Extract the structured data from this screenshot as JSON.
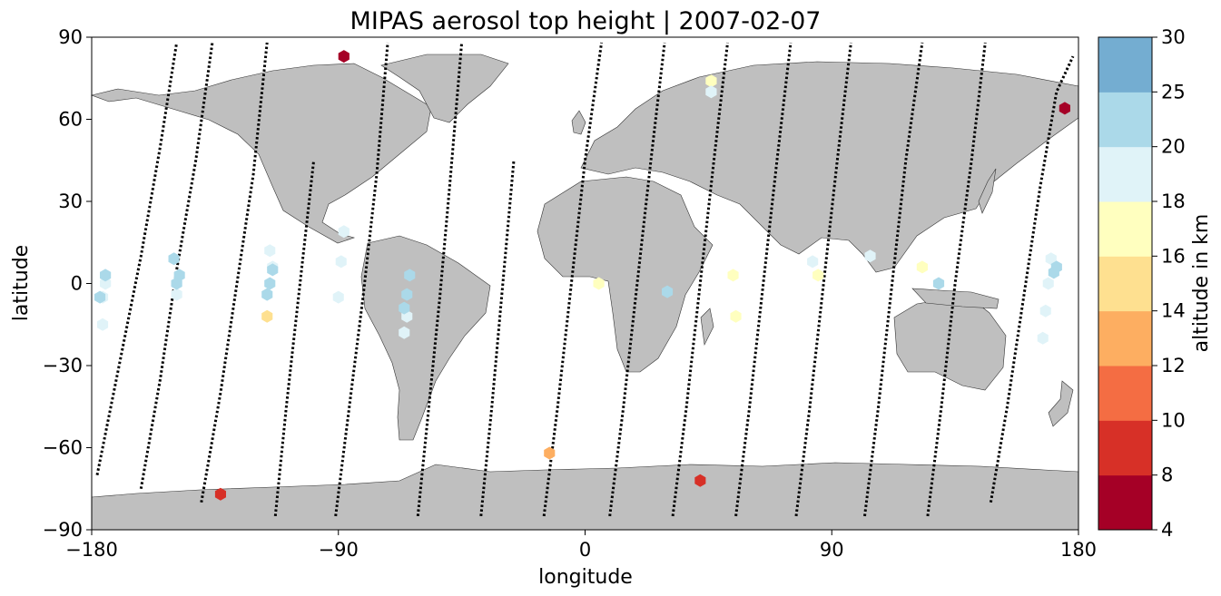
{
  "chart_data": {
    "type": "scatter",
    "title": "MIPAS aerosol top height | 2007-02-07",
    "xlabel": "longitude",
    "ylabel": "latitude",
    "xlim": [
      -180,
      180
    ],
    "ylim": [
      -90,
      90
    ],
    "xticks": [
      -180,
      -90,
      0,
      90,
      180
    ],
    "yticks": [
      -90,
      -60,
      -30,
      0,
      30,
      60,
      90
    ],
    "xtick_labels": [
      "−180",
      "−90",
      "0",
      "90",
      "180"
    ],
    "ytick_labels": [
      "−90",
      "−60",
      "−30",
      "0",
      "30",
      "60",
      "90"
    ],
    "grid": false,
    "colorbar": {
      "label": "altitude in km",
      "bounds": [
        4,
        8,
        10,
        12,
        14,
        16,
        18,
        20,
        25,
        30
      ],
      "tick_labels": [
        "4",
        "8",
        "10",
        "12",
        "14",
        "16",
        "18",
        "20",
        "25",
        "30"
      ],
      "colors": [
        "#a50026",
        "#d73027",
        "#f46d43",
        "#fdae61",
        "#fee090",
        "#ffffbf",
        "#e0f3f8",
        "#abd9e9",
        "#74add1",
        "#4575b4",
        "#313695"
      ]
    },
    "orbit_tracks": [
      {
        "x": [
          -178,
          -170,
          -162,
          -155,
          -149
        ],
        "y": [
          -70,
          -30,
          10,
          50,
          88
        ]
      },
      {
        "x": [
          -162,
          -155,
          -149,
          -142,
          -136
        ],
        "y": [
          -75,
          -35,
          5,
          45,
          88
        ]
      },
      {
        "x": [
          -140,
          -133,
          -127,
          -121,
          -116
        ],
        "y": [
          -80,
          -40,
          0,
          40,
          88
        ]
      },
      {
        "x": [
          -113,
          -109,
          -104,
          -99
        ],
        "y": [
          -85,
          -45,
          0,
          45
        ]
      },
      {
        "x": [
          -91,
          -86,
          -81,
          -76,
          -72
        ],
        "y": [
          -85,
          -45,
          -5,
          40,
          88
        ]
      },
      {
        "x": [
          -61,
          -57,
          -53,
          -49,
          -45
        ],
        "y": [
          -85,
          -45,
          -5,
          40,
          88
        ]
      },
      {
        "x": [
          -38,
          -34,
          -30,
          -26
        ],
        "y": [
          -85,
          -45,
          0,
          45
        ]
      },
      {
        "x": [
          -15,
          -10,
          -5,
          0,
          6
        ],
        "y": [
          -85,
          -45,
          0,
          45,
          88
        ]
      },
      {
        "x": [
          9,
          14,
          19,
          24,
          29
        ],
        "y": [
          -85,
          -45,
          0,
          45,
          88
        ]
      },
      {
        "x": [
          32,
          37,
          42,
          47,
          52
        ],
        "y": [
          -85,
          -45,
          0,
          45,
          88
        ]
      },
      {
        "x": [
          55,
          60,
          65,
          70,
          75
        ],
        "y": [
          -85,
          -45,
          0,
          45,
          88
        ]
      },
      {
        "x": [
          77,
          82,
          87,
          92,
          97
        ],
        "y": [
          -85,
          -45,
          0,
          45,
          88
        ]
      },
      {
        "x": [
          102,
          107,
          112,
          117,
          123
        ],
        "y": [
          -85,
          -45,
          0,
          45,
          88
        ]
      },
      {
        "x": [
          125,
          130,
          135,
          141,
          146
        ],
        "y": [
          -85,
          -45,
          0,
          45,
          88
        ]
      },
      {
        "x": [
          148,
          154,
          160,
          166,
          172,
          178
        ],
        "y": [
          -80,
          -45,
          -5,
          35,
          70,
          83
        ]
      }
    ],
    "points": [
      {
        "x": -88,
        "y": 83,
        "value": 6
      },
      {
        "x": 175,
        "y": 64,
        "value": 6
      },
      {
        "x": -133,
        "y": -77,
        "value": 9
      },
      {
        "x": 42,
        "y": -72,
        "value": 9
      },
      {
        "x": -13,
        "y": -62,
        "value": 13
      },
      {
        "x": -116,
        "y": -12,
        "value": 15
      },
      {
        "x": 5,
        "y": 0,
        "value": 17
      },
      {
        "x": 46,
        "y": 74,
        "value": 17
      },
      {
        "x": 54,
        "y": 3,
        "value": 17
      },
      {
        "x": 55,
        "y": -12,
        "value": 17
      },
      {
        "x": 85,
        "y": 3,
        "value": 17
      },
      {
        "x": 123,
        "y": 6,
        "value": 17
      },
      {
        "x": -176,
        "y": -15,
        "value": 19
      },
      {
        "x": -176,
        "y": -5,
        "value": 19
      },
      {
        "x": -175,
        "y": 0,
        "value": 19
      },
      {
        "x": -149,
        "y": -4,
        "value": 19
      },
      {
        "x": -115,
        "y": 12,
        "value": 19
      },
      {
        "x": -114,
        "y": 6,
        "value": 19
      },
      {
        "x": -90,
        "y": -5,
        "value": 19
      },
      {
        "x": -89,
        "y": 8,
        "value": 19
      },
      {
        "x": -88,
        "y": 19,
        "value": 19
      },
      {
        "x": -66,
        "y": -18,
        "value": 19
      },
      {
        "x": -65,
        "y": -12,
        "value": 19
      },
      {
        "x": 46,
        "y": 70,
        "value": 19
      },
      {
        "x": 83,
        "y": 8,
        "value": 19
      },
      {
        "x": 104,
        "y": 10,
        "value": 19
      },
      {
        "x": 167,
        "y": -20,
        "value": 19
      },
      {
        "x": 168,
        "y": -10,
        "value": 19
      },
      {
        "x": 169,
        "y": 0,
        "value": 19
      },
      {
        "x": 170,
        "y": 9,
        "value": 19
      },
      {
        "x": -177,
        "y": -5,
        "value": 22
      },
      {
        "x": -175,
        "y": 3,
        "value": 22
      },
      {
        "x": -150,
        "y": 9,
        "value": 22
      },
      {
        "x": -149,
        "y": 0,
        "value": 22
      },
      {
        "x": -148,
        "y": 3,
        "value": 22
      },
      {
        "x": -116,
        "y": -4,
        "value": 22
      },
      {
        "x": -115,
        "y": 0,
        "value": 22
      },
      {
        "x": -114,
        "y": 5,
        "value": 22
      },
      {
        "x": -66,
        "y": -9,
        "value": 22
      },
      {
        "x": -65,
        "y": -4,
        "value": 22
      },
      {
        "x": -64,
        "y": 3,
        "value": 22
      },
      {
        "x": 30,
        "y": -3,
        "value": 22
      },
      {
        "x": 129,
        "y": 0,
        "value": 22
      },
      {
        "x": 171,
        "y": 4,
        "value": 22
      },
      {
        "x": 172,
        "y": 6,
        "value": 22
      }
    ]
  }
}
